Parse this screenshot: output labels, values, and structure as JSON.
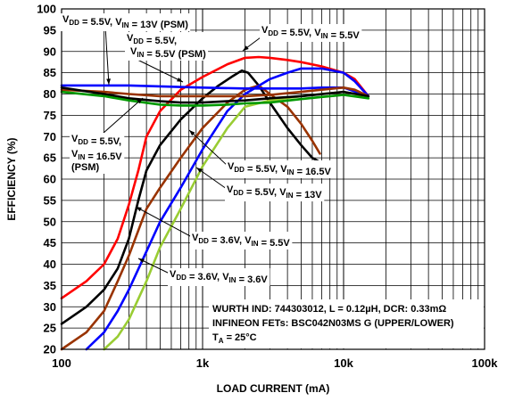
{
  "chart_data": {
    "type": "line",
    "xlabel": "LOAD CURRENT (mA)",
    "ylabel": "EFFICIENCY (%)",
    "xscale": "log",
    "xlim": [
      100,
      100000
    ],
    "ylim": [
      20,
      100
    ],
    "grid": true,
    "x_tick_labels": [
      "100",
      "1k",
      "10k",
      "100k"
    ],
    "y_tick_labels": [
      "20",
      "25",
      "30",
      "35",
      "40",
      "45",
      "50",
      "55",
      "60",
      "65",
      "70",
      "75",
      "80",
      "85",
      "90",
      "95",
      "100"
    ],
    "series": [
      {
        "color": "#ff0000",
        "x": [
          100,
          150,
          200,
          250,
          300,
          350,
          400,
          500,
          700,
          1000,
          1500,
          2000,
          2500,
          3000,
          4000,
          5000,
          7000,
          10000,
          12000,
          15000
        ],
        "y": [
          32,
          36,
          40,
          46,
          54,
          62,
          70,
          76,
          81,
          84,
          87,
          88.5,
          88.7,
          88.5,
          88,
          87.5,
          86.5,
          85,
          83.5,
          79.5
        ]
      },
      {
        "color": "#000000",
        "x": [
          100,
          150,
          200,
          250,
          300,
          350,
          400,
          500,
          700,
          1000,
          1300,
          1600,
          1900,
          2100,
          2500,
          3000,
          4000,
          5000,
          6000,
          6800
        ],
        "y": [
          26,
          30,
          34,
          39,
          46,
          55,
          62,
          68,
          74,
          79,
          82,
          84,
          85.5,
          85,
          82,
          78,
          72,
          68,
          65,
          64
        ]
      },
      {
        "color": "#993300",
        "x": [
          100,
          150,
          200,
          250,
          300,
          400,
          500,
          700,
          1000,
          1500,
          2000,
          2500,
          3000,
          4000,
          5000,
          6000,
          6800
        ],
        "y": [
          20,
          24,
          29,
          36,
          42,
          53,
          58,
          65,
          72,
          78,
          81,
          82,
          80,
          77,
          73,
          69,
          66
        ]
      },
      {
        "color": "#0000ff",
        "x": [
          150,
          200,
          250,
          300,
          400,
          500,
          700,
          1000,
          1500,
          2000,
          3000,
          4000,
          5000,
          7000,
          10000,
          12000,
          15000
        ],
        "y": [
          20,
          24,
          29,
          34,
          43,
          50,
          58,
          67,
          76,
          80,
          83.5,
          85,
          86,
          86,
          85,
          83,
          79.5
        ]
      },
      {
        "color": "#99cc33",
        "x": [
          200,
          250,
          300,
          400,
          500,
          700,
          1000,
          1500,
          2000,
          3000,
          5000,
          7000,
          10000,
          12000,
          15000
        ],
        "y": [
          20,
          23,
          27,
          36,
          44,
          53,
          63,
          72,
          77,
          78.5,
          79.5,
          80,
          80.5,
          80,
          79
        ]
      },
      {
        "color": "#0000ff",
        "x": [
          100,
          300,
          1000,
          2000,
          3000,
          5000,
          7000,
          10000,
          15000
        ],
        "y": [
          82,
          82,
          81.5,
          81.3,
          81.3,
          81.3,
          81.5,
          81.5,
          79.5
        ]
      },
      {
        "color": "#993300",
        "x": [
          100,
          200,
          300,
          500,
          1000,
          2000,
          3000,
          5000,
          7000,
          10000,
          12000,
          15000
        ],
        "y": [
          81,
          80.5,
          80,
          79.5,
          79.5,
          79.5,
          79.8,
          80.5,
          81,
          81.5,
          81,
          79.5
        ]
      },
      {
        "color": "#000000",
        "x": [
          100,
          200,
          300,
          500,
          700,
          1000,
          1500,
          2000,
          3000,
          5000,
          10000,
          15000
        ],
        "y": [
          81.5,
          80,
          79,
          78.3,
          78,
          78,
          78.3,
          78.5,
          79,
          79.5,
          80.5,
          79.5
        ]
      },
      {
        "color": "#009900",
        "x": [
          100,
          200,
          300,
          500,
          700,
          1000,
          1500,
          2000,
          3000,
          5000,
          7000,
          10000,
          15000
        ],
        "y": [
          80.5,
          79.5,
          78.5,
          77.5,
          77.3,
          77.3,
          77.5,
          77.8,
          78,
          78.8,
          79.3,
          79.8,
          79
        ]
      }
    ],
    "annotations": [
      {
        "id": "psm13",
        "parts": [
          [
            "V",
            "DD"
          ],
          " = 5.5V, ",
          [
            "V",
            "IN"
          ],
          " = 13V (PSM)"
        ]
      },
      {
        "id": "psm55",
        "parts": [
          [
            "V",
            "DD"
          ],
          " = 5.5V,"
        ],
        "line2": [
          [
            "V",
            "IN"
          ],
          " = 5.5V (PSM)"
        ]
      },
      {
        "id": "top55",
        "parts": [
          [
            "V",
            "DD"
          ],
          " = 5.5V, ",
          [
            "V",
            "IN"
          ],
          " = 5.5V"
        ]
      },
      {
        "id": "psm165",
        "parts": [
          [
            "V",
            "DD"
          ],
          " = 5.5V,"
        ],
        "line2": [
          [
            "V",
            "IN"
          ],
          " = 16.5V"
        ],
        "line3": "(PSM)"
      },
      {
        "id": "v165",
        "parts": [
          [
            "V",
            "DD"
          ],
          " = 5.5V, ",
          [
            "V",
            "IN"
          ],
          " = 16.5V"
        ]
      },
      {
        "id": "v13",
        "parts": [
          [
            "V",
            "DD"
          ],
          " = 5.5V, ",
          [
            "V",
            "IN"
          ],
          " = 13V"
        ]
      },
      {
        "id": "v36_55",
        "parts": [
          [
            "V",
            "DD"
          ],
          " = 3.6V, ",
          [
            "V",
            "IN"
          ],
          " = 5.5V"
        ]
      },
      {
        "id": "v36_36",
        "parts": [
          [
            "V",
            "DD"
          ],
          " = 3.6V, ",
          [
            "V",
            "IN"
          ],
          " = 3.6V"
        ]
      }
    ],
    "info_box": [
      "WURTH IND: 744303012, L = 0.12µH, DCR: 0.33mΩ",
      "INFINEON FETs: BSC042N03MS G (UPPER/LOWER)",
      "T|A| = 25°C"
    ]
  }
}
